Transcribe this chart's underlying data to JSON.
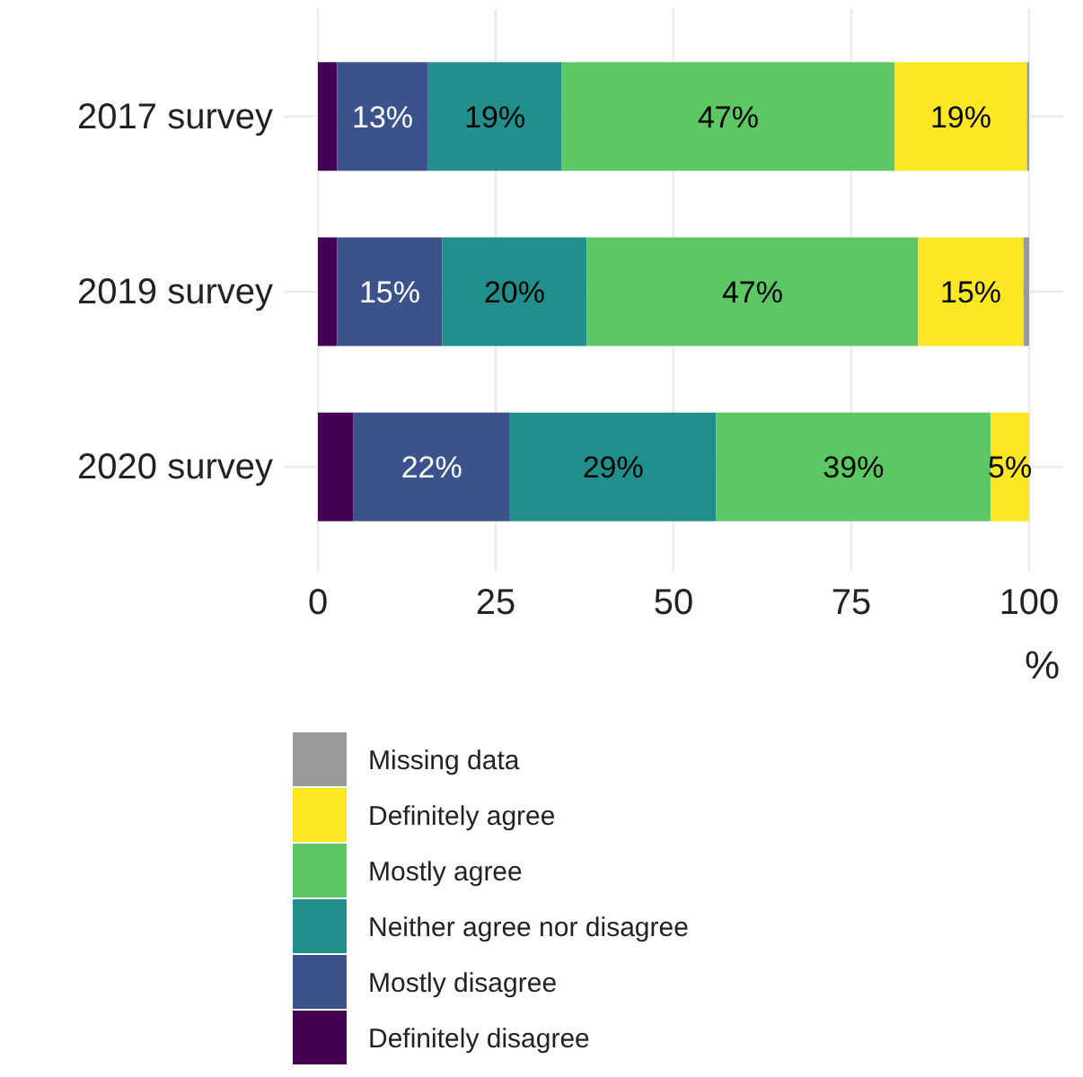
{
  "chart_data": {
    "type": "bar",
    "orientation": "horizontal",
    "stacked": true,
    "categories": [
      "2017 survey",
      "2019 survey",
      "2020 survey"
    ],
    "series": [
      {
        "name": "Definitely disagree",
        "color": "#440154",
        "values": [
          2.7,
          2.7,
          5
        ],
        "value_labels": [
          null,
          null,
          null
        ]
      },
      {
        "name": "Mostly disagree",
        "color": "#3b528b",
        "values": [
          12.8,
          14.8,
          22
        ],
        "value_labels": [
          "13%",
          "15%",
          "22%"
        ]
      },
      {
        "name": "Neither agree nor disagree",
        "color": "#21908c",
        "values": [
          18.8,
          20.3,
          29
        ],
        "value_labels": [
          "19%",
          "20%",
          "29%"
        ]
      },
      {
        "name": "Mostly agree",
        "color": "#5dc863",
        "values": [
          46.8,
          46.6,
          38.6
        ],
        "value_labels": [
          "47%",
          "47%",
          "39%"
        ]
      },
      {
        "name": "Definitely agree",
        "color": "#fde725",
        "values": [
          18.6,
          14.8,
          5.4
        ],
        "value_labels": [
          "19%",
          "15%",
          "5%"
        ]
      },
      {
        "name": "Missing data",
        "color": "#999999",
        "values": [
          0.3,
          0.8,
          0
        ],
        "value_labels": [
          null,
          null,
          null
        ]
      }
    ],
    "xlim": [
      0,
      100
    ],
    "xticks": [
      0,
      25,
      50,
      75,
      100
    ],
    "xlabel": "%",
    "grid": true,
    "legend": "bottom"
  }
}
